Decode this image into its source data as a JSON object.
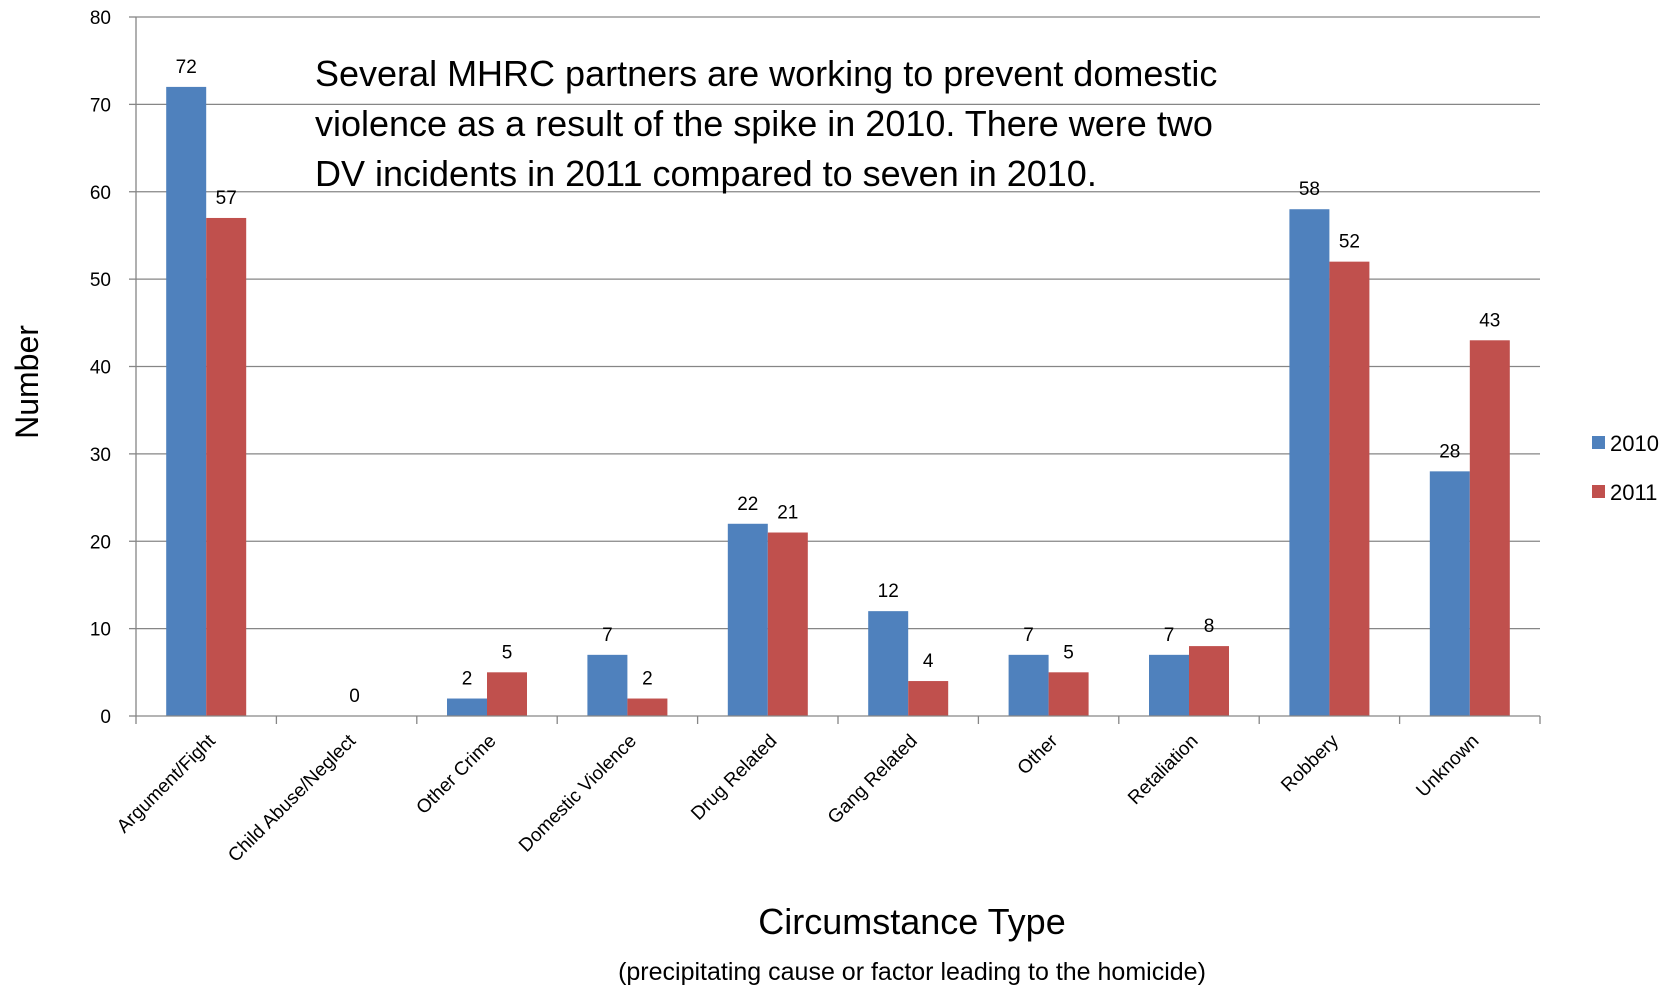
{
  "chart_data": {
    "type": "bar",
    "categories": [
      "Argument/Fight",
      "Child Abuse/Neglect",
      "Other Crime",
      "Domestic Violence",
      "Drug Related",
      "Gang Related",
      "Other",
      "Retaliation",
      "Robbery",
      "Unknown"
    ],
    "series": [
      {
        "name": "2010",
        "color": "#4F81BD",
        "values": [
          72,
          null,
          2,
          7,
          22,
          12,
          7,
          7,
          58,
          28
        ]
      },
      {
        "name": "2011",
        "color": "#C0504D",
        "values": [
          57,
          null,
          5,
          2,
          21,
          4,
          5,
          8,
          52,
          43
        ]
      }
    ],
    "category_labels": [
      "",
      "0",
      "",
      "",
      "",
      "",
      "",
      "",
      "",
      ""
    ],
    "title": "",
    "xlabel": "Circumstance Type",
    "xlabel_sub": "(precipitating cause or factor leading to the homicide)",
    "ylabel": "Number",
    "ylim": [
      0,
      80
    ],
    "yticks": [
      0,
      10,
      20,
      30,
      40,
      50,
      60,
      70,
      80
    ],
    "grid": true,
    "legend_position": "right",
    "annotation": [
      "Several MHRC partners are working to prevent domestic",
      "violence as a result of the spike in 2010. There were two",
      "DV incidents in 2011 compared to seven in 2010."
    ]
  }
}
